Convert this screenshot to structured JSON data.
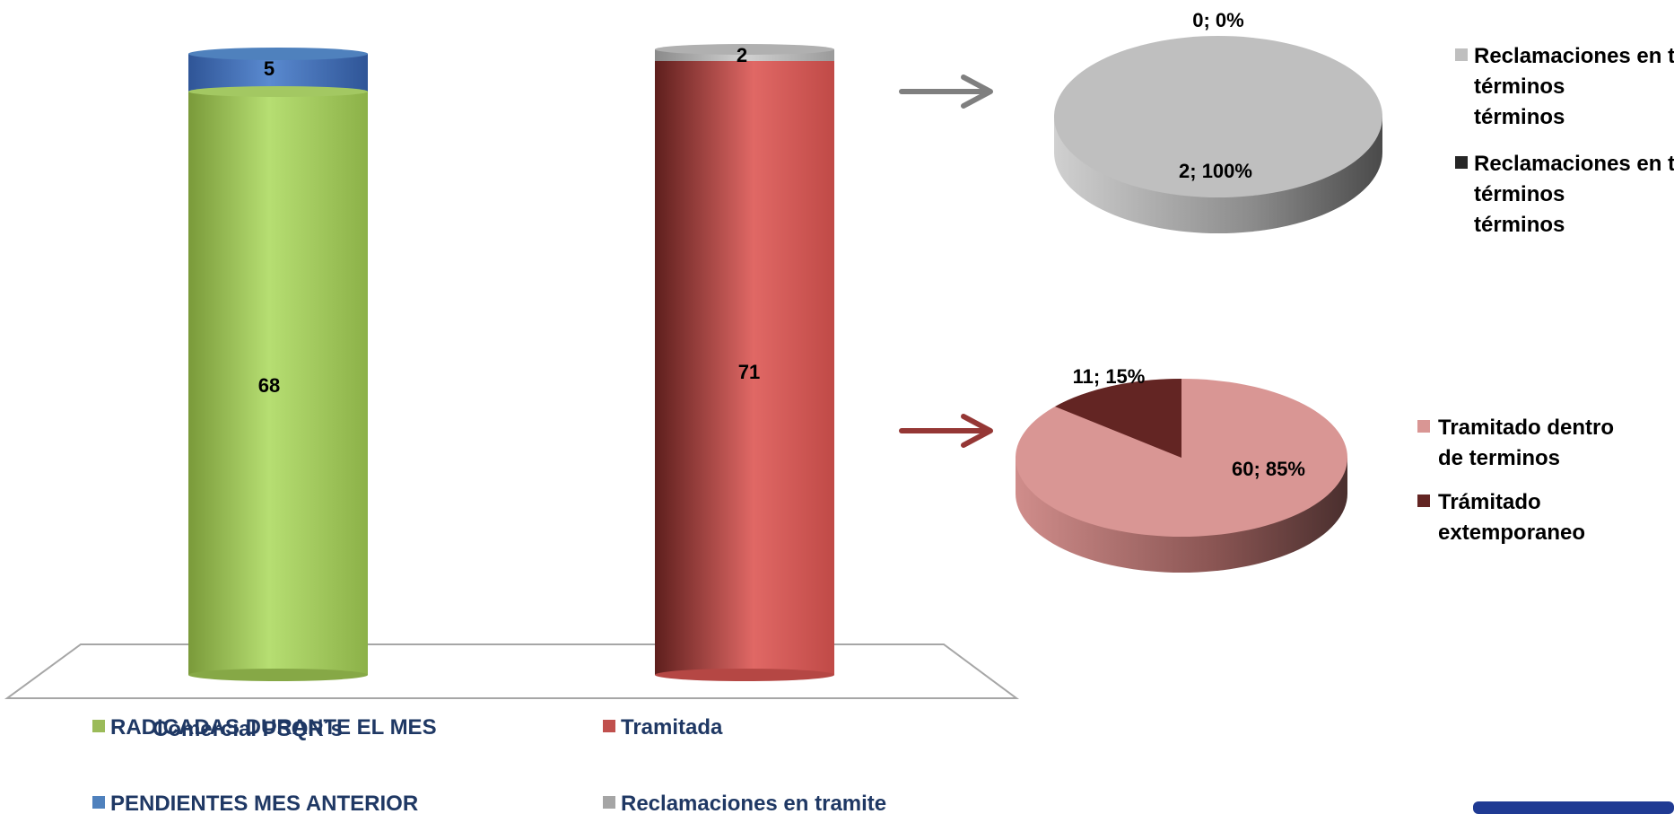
{
  "chart_data": [
    {
      "type": "bar",
      "subtype": "stacked-cylinder-3d",
      "categories": [
        "Comercial PSQR´s",
        ""
      ],
      "series": [
        {
          "name": "RADICADAS DURANTE EL MES",
          "values": [
            68,
            null
          ],
          "color": "#9bbb59"
        },
        {
          "name": "PENDIENTES MES ANTERIOR",
          "values": [
            5,
            null
          ],
          "color": "#4f81bd"
        },
        {
          "name": "Tramitada",
          "values": [
            null,
            71
          ],
          "color": "#c0504d"
        },
        {
          "name": "Reclamaciones en tramite",
          "values": [
            null,
            2
          ],
          "color": "#a5a5a5"
        }
      ],
      "legend_position": "bottom",
      "title": "",
      "xlabel": "",
      "ylabel": ""
    },
    {
      "type": "pie",
      "subtype": "pie-3d",
      "slices": [
        {
          "name": "Reclamaciones en tramite dentro de términos",
          "value": 2,
          "percent": 100,
          "label": "2; 100%",
          "color": "#bfbfbf"
        },
        {
          "name": "Reclamaciones en tramite fuera de términos",
          "value": 0,
          "percent": 0,
          "label": "0; 0%",
          "color": "#262626"
        }
      ],
      "legend_position": "right"
    },
    {
      "type": "pie",
      "subtype": "pie-3d",
      "slices": [
        {
          "name": "Tramitado dentro de terminos",
          "value": 60,
          "percent": 85,
          "label": "60; 85%",
          "color": "#d99694"
        },
        {
          "name": "Trámitado extemporaneo",
          "value": 11,
          "percent": 15,
          "label": "11; 15%",
          "color": "#632523"
        }
      ],
      "legend_position": "right"
    }
  ],
  "legend_main": {
    "col1": [
      "RADICADAS DURANTE EL MES",
      "PENDIENTES MES ANTERIOR"
    ],
    "col2": [
      "Tramitada",
      "Reclamaciones en tramite"
    ]
  },
  "legend_pie_top": [
    "Reclamaciones en tramite dentro de",
    "términos",
    "Reclamaciones en tramite fuera de",
    "términos"
  ],
  "legend_pie_bottom": [
    "Tramitado dentro de terminos",
    "Trámitado extemporaneo"
  ],
  "colors": {
    "arrow_gray": "#7f7f7f",
    "arrow_red": "#953735",
    "legend_text": "#1f3864"
  }
}
